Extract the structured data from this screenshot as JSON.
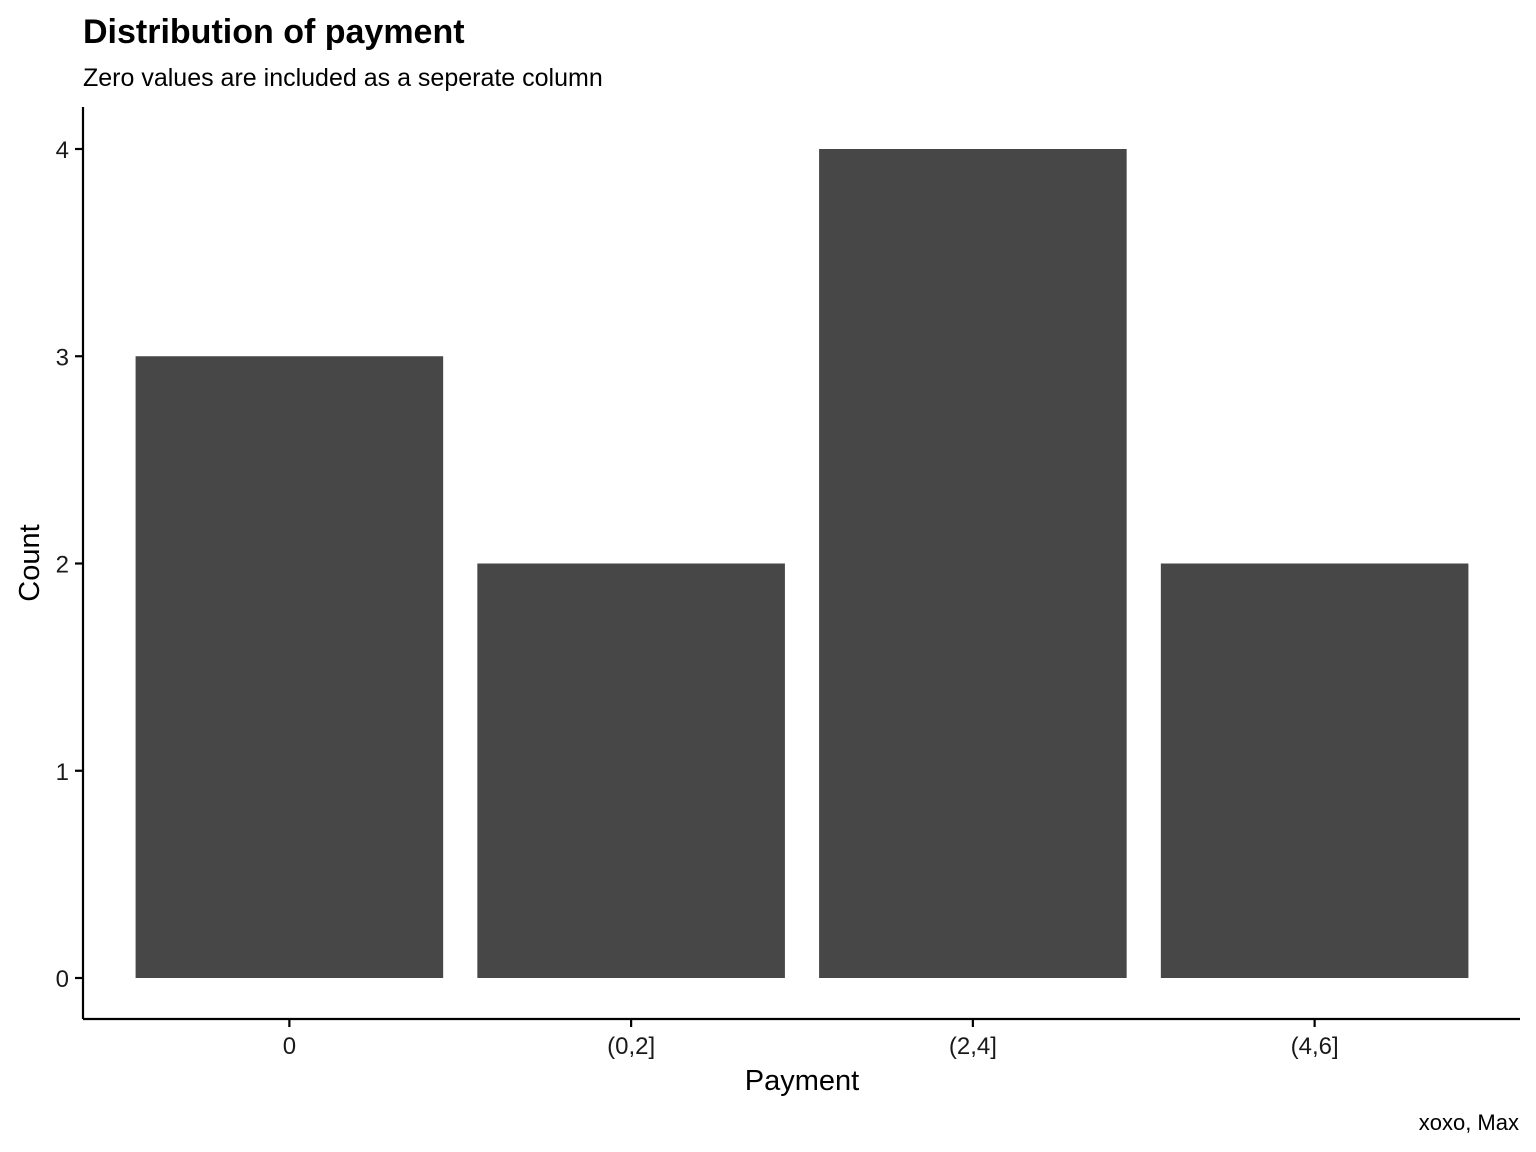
{
  "chart_data": {
    "type": "bar",
    "title": "Distribution of payment",
    "subtitle": "Zero values are included as a seperate column",
    "xlabel": "Payment",
    "ylabel": "Count",
    "caption": "xoxo, Max",
    "categories": [
      "0",
      "(0,2]",
      "(2,4]",
      "(4,6]"
    ],
    "values": [
      3,
      2,
      4,
      2
    ],
    "ylim": [
      0,
      4.2
    ],
    "yticks": [
      0,
      1,
      2,
      3,
      4
    ],
    "grid": false,
    "legend": "none",
    "colors": {
      "bar": "#474747",
      "axis": "#000000",
      "background": "#ffffff"
    }
  }
}
